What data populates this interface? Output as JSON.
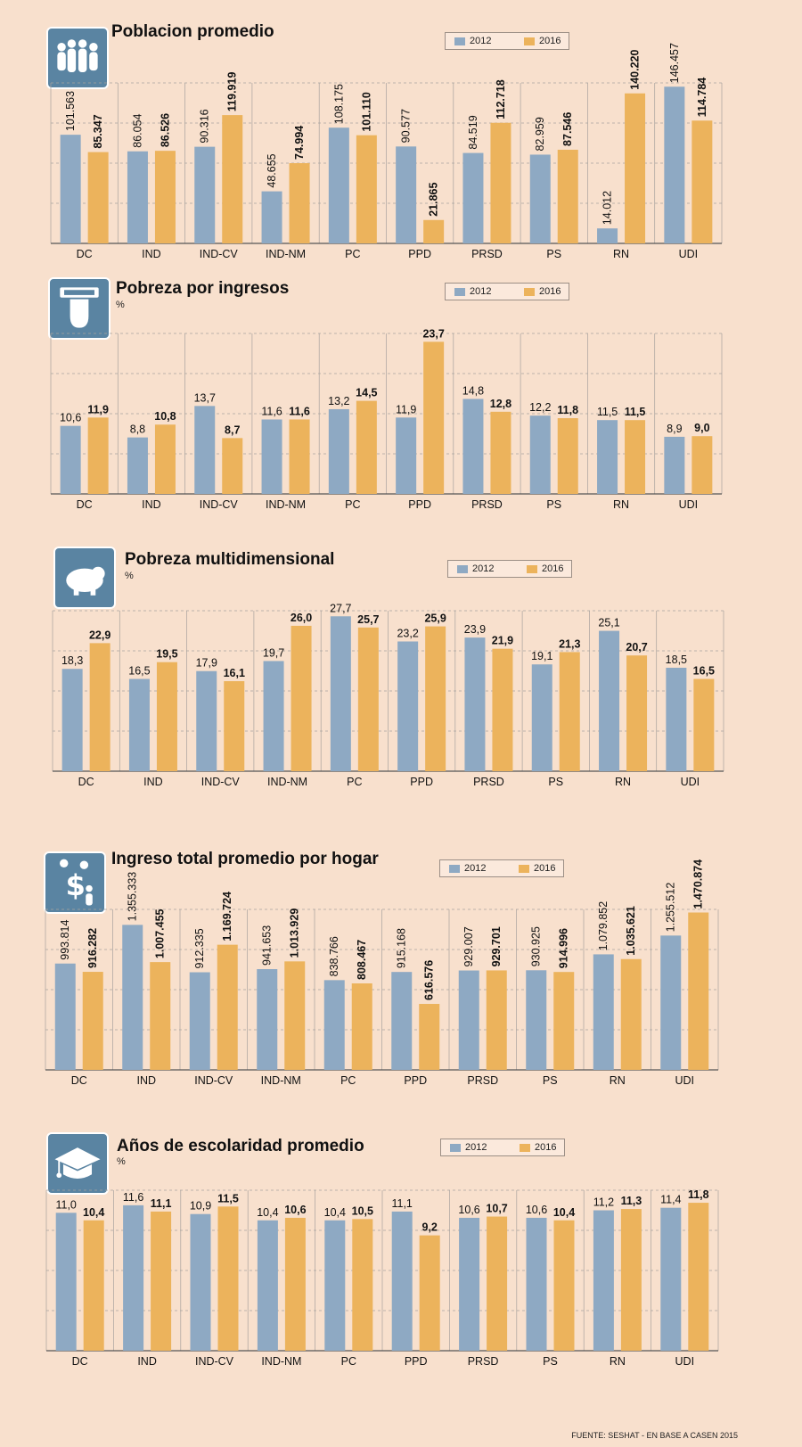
{
  "colors": {
    "y2012": "#8ea9c3",
    "y2016": "#ecb35c",
    "icon": "#5a84a2"
  },
  "legend": {
    "a": "2012",
    "b": "2016"
  },
  "source": "FUENTE: SESHAT - EN BASE A CASEN 2015",
  "chart_data": [
    {
      "type": "bar",
      "title": "Poblacion promedio",
      "unit": "",
      "icon": "people-icon",
      "categories": [
        "DC",
        "IND",
        "IND-CV",
        "IND-NM",
        "PC",
        "PPD",
        "PRSD",
        "PS",
        "RN",
        "UDI"
      ],
      "series": [
        {
          "name": "2012",
          "values": [
            101563,
            86054,
            90316,
            48655,
            108175,
            90577,
            84519,
            82959,
            14012,
            146457
          ],
          "labels": [
            "101.563",
            "86.054",
            "90.316",
            "48.655",
            "108.175",
            "90.577",
            "84.519",
            "82.959",
            "14.012",
            "146.457"
          ]
        },
        {
          "name": "2016",
          "values": [
            85347,
            86526,
            119919,
            74994,
            101110,
            21865,
            112718,
            87546,
            140220,
            114784
          ],
          "labels": [
            "85.347",
            "86.526",
            "119.919",
            "74.994",
            "101.110",
            "21.865",
            "112.718",
            "87.546",
            "140.220",
            "114.784"
          ]
        }
      ],
      "ylim": [
        0,
        150000
      ],
      "label_style": "vertical"
    },
    {
      "type": "bar",
      "title": "Pobreza por ingresos",
      "unit": "%",
      "icon": "atm-cash-icon",
      "categories": [
        "DC",
        "IND",
        "IND-CV",
        "IND-NM",
        "PC",
        "PPD",
        "PRSD",
        "PS",
        "RN",
        "UDI"
      ],
      "series": [
        {
          "name": "2012",
          "values": [
            10.6,
            8.8,
            13.7,
            11.6,
            13.2,
            11.9,
            14.8,
            12.2,
            11.5,
            8.9
          ],
          "labels": [
            "10,6",
            "8,8",
            "13,7",
            "11,6",
            "13,2",
            "11,9",
            "14,8",
            "12,2",
            "11,5",
            "8,9"
          ]
        },
        {
          "name": "2016",
          "values": [
            11.9,
            10.8,
            8.7,
            11.6,
            14.5,
            23.7,
            12.8,
            11.8,
            11.5,
            9.0
          ],
          "labels": [
            "11,9",
            "10,8",
            "8,7",
            "11,6",
            "14,5",
            "23,7",
            "12,8",
            "11,8",
            "11,5",
            "9,0"
          ]
        }
      ],
      "ylim": [
        0,
        25
      ],
      "label_style": "horizontal"
    },
    {
      "type": "bar",
      "title": "Pobreza multidimensional",
      "unit": "%",
      "icon": "piggy-bank-icon",
      "categories": [
        "DC",
        "IND",
        "IND-CV",
        "IND-NM",
        "PC",
        "PPD",
        "PRSD",
        "PS",
        "RN",
        "UDI"
      ],
      "series": [
        {
          "name": "2012",
          "values": [
            18.3,
            16.5,
            17.9,
            19.7,
            27.7,
            23.2,
            23.9,
            19.1,
            25.1,
            18.5
          ],
          "labels": [
            "18,3",
            "16,5",
            "17,9",
            "19,7",
            "27,7",
            "23,2",
            "23,9",
            "19,1",
            "25,1",
            "18,5"
          ]
        },
        {
          "name": "2016",
          "values": [
            22.9,
            19.5,
            16.1,
            26.0,
            25.7,
            25.9,
            21.9,
            21.3,
            20.7,
            16.5
          ],
          "labels": [
            "22,9",
            "19,5",
            "16,1",
            "26,0",
            "25,7",
            "25,9",
            "21,9",
            "21,3",
            "20,7",
            "16,5"
          ]
        }
      ],
      "ylim": [
        0,
        28.7
      ],
      "label_style": "horizontal"
    },
    {
      "type": "bar",
      "title": "Ingreso total promedio por hogar",
      "unit": "",
      "icon": "family-money-icon",
      "categories": [
        "DC",
        "IND",
        "IND-CV",
        "IND-NM",
        "PC",
        "PPD",
        "PRSD",
        "PS",
        "RN",
        "UDI"
      ],
      "series": [
        {
          "name": "2012",
          "values": [
            993814,
            1355333,
            912335,
            941653,
            838766,
            915168,
            929007,
            930925,
            1079852,
            1255512
          ],
          "labels": [
            "993.814",
            "1.355.333",
            "912.335",
            "941.653",
            "838.766",
            "915.168",
            "929.007",
            "930.925",
            "1.079.852",
            "1.255.512"
          ]
        },
        {
          "name": "2016",
          "values": [
            916282,
            1007455,
            1169724,
            1013929,
            808467,
            616576,
            929701,
            914996,
            1035621,
            1470874
          ],
          "labels": [
            "916.282",
            "1.007.455",
            "1.169.724",
            "1.013.929",
            "808.467",
            "616.576",
            "929.701",
            "914.996",
            "1.035.621",
            "1.470.874"
          ]
        }
      ],
      "ylim": [
        0,
        1500000
      ],
      "label_style": "vertical"
    },
    {
      "type": "bar",
      "title": "Años de escolaridad promedio",
      "unit": "%",
      "icon": "graduation-cap-icon",
      "categories": [
        "DC",
        "IND",
        "IND-CV",
        "IND-NM",
        "PC",
        "PPD",
        "PRSD",
        "PS",
        "RN",
        "UDI"
      ],
      "series": [
        {
          "name": "2012",
          "values": [
            11.0,
            11.6,
            10.9,
            10.4,
            10.4,
            11.1,
            10.6,
            10.6,
            11.2,
            11.4
          ],
          "labels": [
            "11,0",
            "11,6",
            "10,9",
            "10,4",
            "10,4",
            "11,1",
            "10,6",
            "10,6",
            "11,2",
            "11,4"
          ]
        },
        {
          "name": "2016",
          "values": [
            10.4,
            11.1,
            11.5,
            10.6,
            10.5,
            9.2,
            10.7,
            10.4,
            11.3,
            11.8
          ],
          "labels": [
            "10,4",
            "11,1",
            "11,5",
            "10,6",
            "10,5",
            "9,2",
            "10,7",
            "10,4",
            "11,3",
            "11,8"
          ]
        }
      ],
      "ylim": [
        0,
        12.8
      ],
      "label_style": "horizontal"
    }
  ]
}
